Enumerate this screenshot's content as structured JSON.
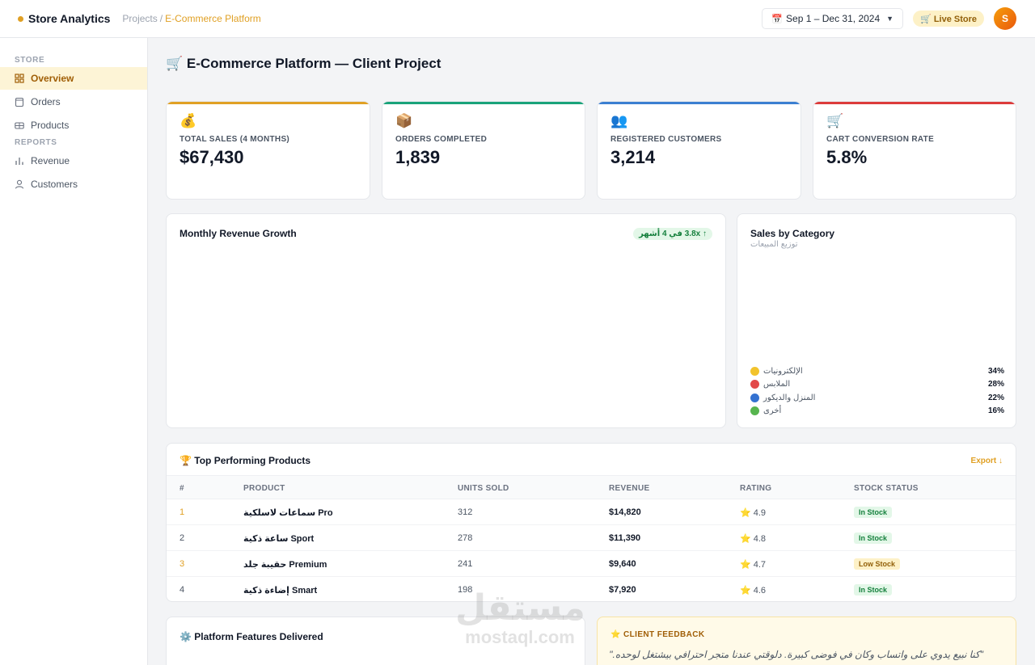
{
  "header": {
    "brand": "Store Analytics",
    "breadcrumb": {
      "parent": "Projects",
      "separator": "/",
      "current": "E-Commerce Platform"
    },
    "date_range": "Sep 1 – Dec 31, 2024",
    "live_badge": "🛒 Live Store",
    "avatar_initial": "S"
  },
  "sidebar": {
    "sections": [
      {
        "title": "STORE",
        "items": [
          {
            "label": "Overview",
            "icon": "grid-icon",
            "active": true
          },
          {
            "label": "Orders",
            "icon": "clipboard-icon"
          },
          {
            "label": "Products",
            "icon": "box-icon"
          }
        ]
      },
      {
        "title": "REPORTS",
        "items": [
          {
            "label": "Revenue",
            "icon": "bar-chart-icon"
          },
          {
            "label": "Customers",
            "icon": "user-icon"
          }
        ]
      }
    ]
  },
  "page": {
    "title": "🛒 E-Commerce Platform — Client Project"
  },
  "kpis": [
    {
      "icon": "💰",
      "label": "TOTAL SALES (4 MONTHS)",
      "value": "$67,430",
      "color": "#e0a024"
    },
    {
      "icon": "📦",
      "label": "ORDERS COMPLETED",
      "value": "1,839",
      "color": "#1aa37a"
    },
    {
      "icon": "👥",
      "label": "REGISTERED CUSTOMERS",
      "value": "3,214",
      "color": "#3b7fd1"
    },
    {
      "icon": "🛒",
      "label": "CART CONVERSION RATE",
      "value": "5.8%",
      "color": "#dc3b3b"
    }
  ],
  "revenue_card": {
    "title": "Monthly Revenue Growth",
    "badge": "↑ 3.8x في 4 أشهر"
  },
  "category_card": {
    "title": "Sales by Category",
    "subtitle": "توزيع المبيعات",
    "legend": [
      {
        "label": "الإلكترونيات",
        "pct": "34%",
        "color": "#f2c32c"
      },
      {
        "label": "الملابس",
        "pct": "28%",
        "color": "#e24a4a"
      },
      {
        "label": "المنزل والديكور",
        "pct": "22%",
        "color": "#3472d1"
      },
      {
        "label": "أخرى",
        "pct": "16%",
        "color": "#57b54f"
      }
    ]
  },
  "products_table": {
    "title": "🏆 Top Performing Products",
    "export_label": "Export ↓",
    "columns": [
      "#",
      "PRODUCT",
      "UNITS SOLD",
      "REVENUE",
      "RATING",
      "STOCK STATUS"
    ],
    "rows": [
      {
        "rank": "1",
        "product": "سماعات لاسلكية Pro",
        "units": "312",
        "revenue": "$14,820",
        "rating": "⭐ 4.9",
        "stock": "In Stock",
        "stock_type": "in"
      },
      {
        "rank": "2",
        "product": "ساعة ذكية Sport",
        "units": "278",
        "revenue": "$11,390",
        "rating": "⭐ 4.8",
        "stock": "In Stock",
        "stock_type": "in"
      },
      {
        "rank": "3",
        "product": "حقيبة جلد Premium",
        "units": "241",
        "revenue": "$9,640",
        "rating": "⭐ 4.7",
        "stock": "Low Stock",
        "stock_type": "low"
      },
      {
        "rank": "4",
        "product": "إضاءة ذكية Smart",
        "units": "198",
        "revenue": "$7,920",
        "rating": "⭐ 4.6",
        "stock": "In Stock",
        "stock_type": "in"
      }
    ]
  },
  "features_card": {
    "title": "⚙️ Platform Features Delivered"
  },
  "feedback_card": {
    "title": "⭐ CLIENT FEEDBACK",
    "quote": "\"كنا نبيع يدوي على واتساب وكان في فوضى كبيرة. دلوقتي عندنا متجر احترافي بيشتغل لوحده.\""
  },
  "watermark": {
    "arabic": "مستقل",
    "latin": "mostaql.com"
  }
}
